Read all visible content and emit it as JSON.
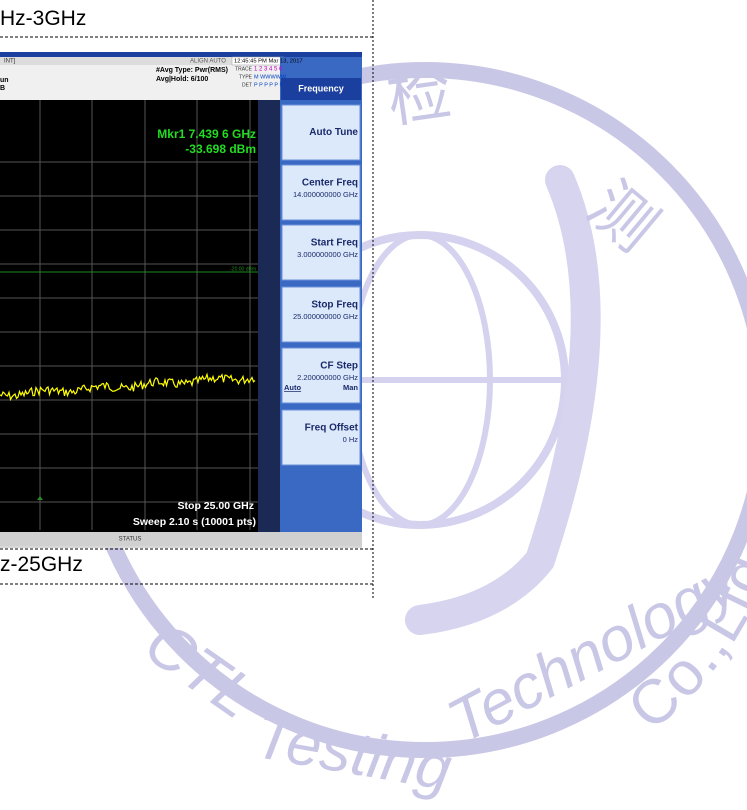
{
  "document": {
    "caption_top": "Hz-3GHz",
    "caption_bottom": "z-25GHz",
    "analyzer": {
      "status_left": "INT]",
      "align": "ALIGN AUTO",
      "time": "12:45:45 PM Mar 13, 2017",
      "avg_type": "#Avg Type: Pwr(RMS)",
      "avg_hold": "Avg|Hold: 6/100",
      "trace_label": "TRACE",
      "trace_nums": "1 2 3 4 5 6",
      "type_label": "TYPE",
      "type_value": "M WWWWW",
      "det_label": "DET",
      "det_value": "P P P P P P",
      "left_fragment_1": "un",
      "left_fragment_2": "B",
      "marker_freq": "Mkr1 7.439 6 GHz",
      "marker_level": "-33.698 dBm",
      "display_line": "-20.00 dBm",
      "stop": "Stop 25.00 GHz",
      "sweep": "Sweep  2.10 s (10001 pts)",
      "status": "STATUS",
      "menu_title": "Frequency",
      "menu": [
        {
          "label": "Auto Tune"
        },
        {
          "label": "Center Freq",
          "value": "14.000000000 GHz"
        },
        {
          "label": "Start Freq",
          "value": "3.000000000 GHz"
        },
        {
          "label": "Stop Freq",
          "value": "25.000000000 GHz"
        },
        {
          "label": "CF Step",
          "value": "2.200000000 GHz",
          "left": "Auto",
          "right": "Man"
        },
        {
          "label": "Freq Offset",
          "value": "0 Hz"
        }
      ]
    },
    "watermark": {
      "char_1": "检",
      "char_2": "测",
      "company": "Co.,Ltd.",
      "brand": "CTL",
      "word_1": "Testing",
      "word_2": "Technology"
    }
  }
}
